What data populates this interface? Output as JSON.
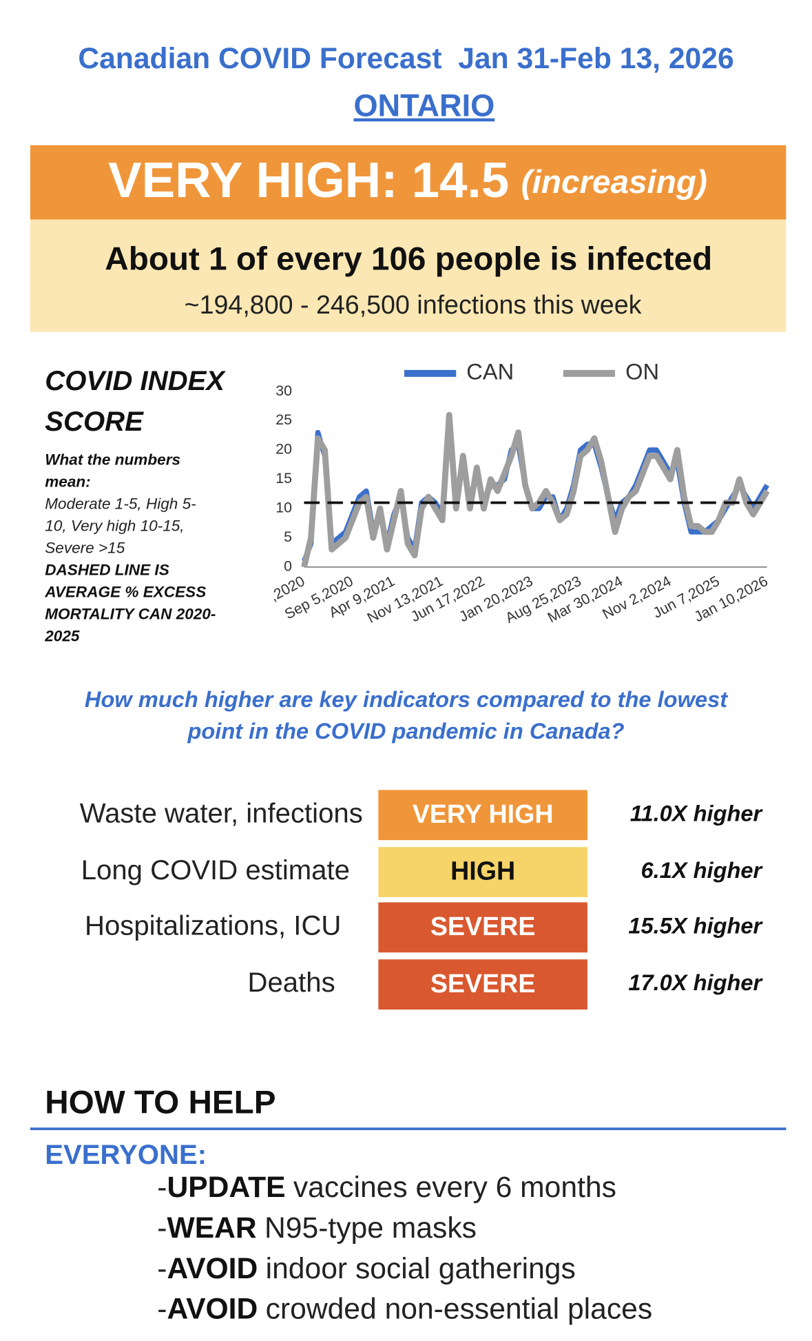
{
  "header": {
    "title": "Canadian COVID Forecast  Jan 31-Feb 13, 2026",
    "region": "ONTARIO"
  },
  "level": {
    "label": "VERY HIGH: 14.5",
    "trend": "(increasing)"
  },
  "infection": {
    "headline": "About 1 of every 106 people is infected",
    "range": "~194,800 - 246,500 infections this week"
  },
  "sidebar": {
    "title": [
      "COVID INDEX",
      "SCORE"
    ],
    "heading": [
      "What the numbers",
      "mean:"
    ],
    "scale": [
      "Moderate 1-5, High 5-",
      "10, Very high 10-15,",
      "Severe >15"
    ],
    "note": [
      "DASHED LINE IS",
      "AVERAGE % EXCESS",
      "MORTALITY CAN 2020-",
      "2025"
    ]
  },
  "chart_data": {
    "type": "line",
    "categories": [
      ",2020",
      null,
      null,
      null,
      null,
      null,
      null,
      "Sep 5,2020",
      null,
      null,
      null,
      null,
      null,
      "Apr 9,2021",
      null,
      null,
      null,
      null,
      null,
      null,
      "Nov 13,2021",
      null,
      null,
      null,
      null,
      null,
      "Jun 17,2022",
      null,
      null,
      null,
      null,
      null,
      null,
      "Jan 20,2023",
      null,
      null,
      null,
      null,
      null,
      null,
      "Aug 25,2023",
      null,
      null,
      null,
      null,
      null,
      "Mar 30,2024",
      null,
      null,
      null,
      null,
      null,
      null,
      "Nov 2,2024",
      null,
      null,
      null,
      null,
      null,
      null,
      "Jun 7,2025",
      null,
      null,
      null,
      null,
      null,
      null,
      "Jan 10,2026"
    ],
    "series": [
      {
        "name": "CAN",
        "color": "#3a6fcc",
        "values": [
          1,
          4,
          23,
          19,
          4,
          5,
          6,
          9,
          12,
          13,
          6,
          9,
          4,
          9,
          12,
          5,
          3,
          11,
          12,
          11,
          9,
          25,
          11,
          18,
          11,
          16,
          11,
          14,
          14,
          15,
          20,
          21,
          14,
          10,
          10,
          12,
          12,
          8,
          10,
          14,
          20,
          21,
          21,
          17,
          12,
          8,
          11,
          12,
          14,
          17,
          20,
          20,
          18,
          16,
          18,
          11,
          6,
          6,
          6,
          7,
          8,
          10,
          12,
          14,
          12,
          10,
          12,
          14
        ]
      },
      {
        "name": "ON",
        "color": "#9e9e9e",
        "values": [
          0,
          5,
          22,
          20,
          3,
          4,
          5,
          8,
          11,
          12,
          5,
          10,
          3,
          8,
          13,
          4,
          2,
          10,
          12,
          10,
          8,
          26,
          10,
          19,
          10,
          17,
          10,
          15,
          13,
          16,
          19,
          23,
          14,
          10,
          11,
          13,
          11,
          8,
          9,
          13,
          19,
          20,
          22,
          18,
          12,
          6,
          10,
          12,
          13,
          16,
          19,
          19,
          17,
          15,
          20,
          12,
          7,
          7,
          6,
          6,
          8,
          11,
          11,
          15,
          11,
          9,
          11,
          13
        ]
      }
    ],
    "reference_line": 11,
    "ylim": [
      0,
      30
    ],
    "yticks": [
      0,
      5,
      10,
      15,
      20,
      25,
      30
    ]
  },
  "question": [
    "How much higher are key indicators compared to the lowest",
    "point in the COVID pandemic in Canada?"
  ],
  "indicators": [
    {
      "name": "Waste water, infections",
      "level": "VERY HIGH",
      "ratio": "11.0X higher"
    },
    {
      "name": "Long COVID estimate",
      "level": "HIGH",
      "ratio": "6.1X higher"
    },
    {
      "name": "Hospitalizations, ICU",
      "level": "SEVERE",
      "ratio": "15.5X higher"
    },
    {
      "name": "Deaths",
      "level": "SEVERE",
      "ratio": "17.0X higher"
    }
  ],
  "help": {
    "title": "HOW TO HELP",
    "group": "EVERYONE:",
    "items": [
      {
        "lead": "-",
        "action": "UPDATE",
        "text": "vaccines every 6 months"
      },
      {
        "lead": "-",
        "action": "WEAR",
        "text": "N95-type masks"
      },
      {
        "lead": "-",
        "action": "AVOID",
        "text": "indoor social gatherings"
      },
      {
        "lead": "-",
        "action": "AVOID",
        "text": "crowded non-essential places"
      }
    ]
  }
}
